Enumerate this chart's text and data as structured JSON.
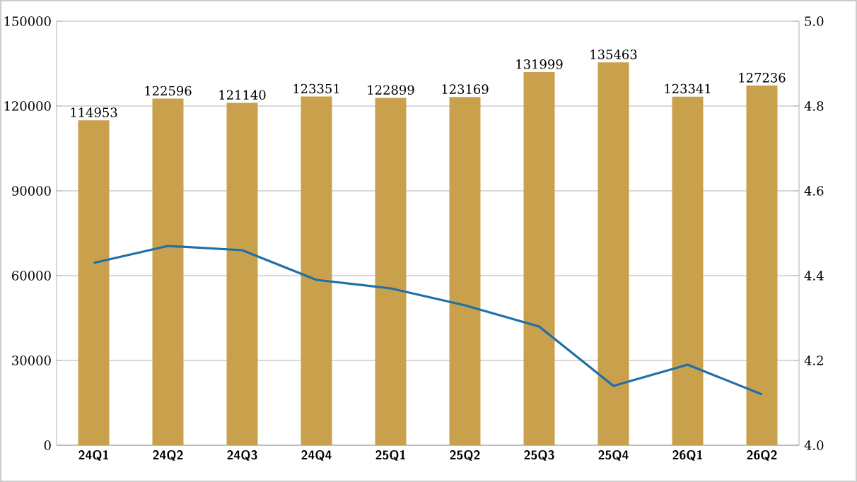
{
  "chart_data": {
    "type": "bar",
    "categories": [
      "24Q1",
      "24Q2",
      "24Q3",
      "24Q4",
      "25Q1",
      "25Q2",
      "25Q3",
      "25Q4",
      "26Q1",
      "26Q2"
    ],
    "series": [
      {
        "color": "#c9a14c",
        "values": [
          114953,
          122596,
          121140,
          123351,
          122899,
          123169,
          131999,
          135463,
          123341,
          127236
        ],
        "value_labels": [
          "114953",
          "122596",
          "121140",
          "123351",
          "122899",
          "123169",
          "131999",
          "135463",
          "123341",
          "127236"
        ]
      },
      {
        "type": "line",
        "axis": "y2",
        "color": "#1f6fa8",
        "values": [
          4.43,
          4.47,
          4.46,
          4.39,
          4.37,
          4.33,
          4.28,
          4.14,
          4.19,
          4.12
        ]
      }
    ],
    "ylim": [
      0,
      150000
    ],
    "yticks": [
      0,
      30000,
      60000,
      90000,
      120000,
      150000
    ],
    "y2lim": [
      4.0,
      5.0
    ],
    "y2ticks": [
      {
        "value": 4.0,
        "label": "4.0"
      },
      4.2,
      4.4,
      4.6,
      4.8,
      {
        "value": 5.0,
        "label": "5.0"
      }
    ],
    "grid": "y",
    "legend": false,
    "marker": "none",
    "line_style": "solid"
  }
}
